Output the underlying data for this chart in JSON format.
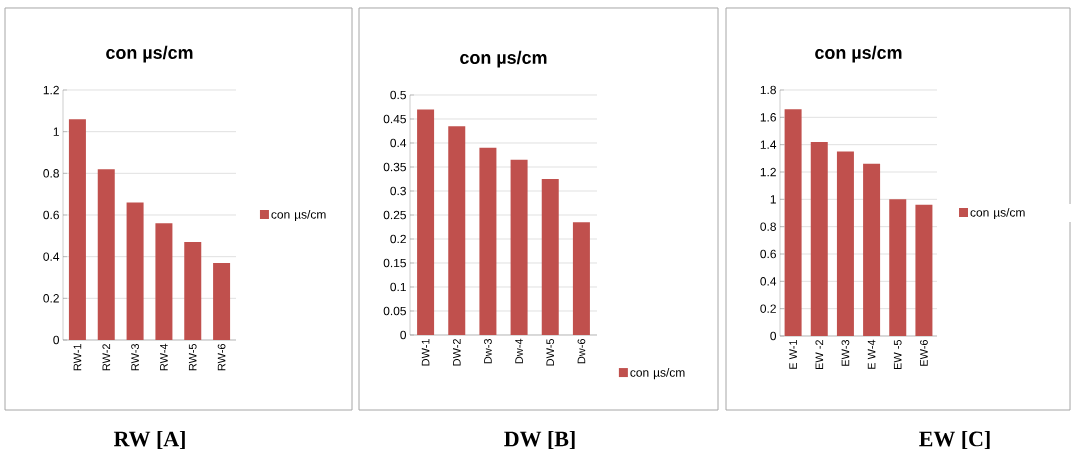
{
  "chart_data": [
    {
      "type": "bar",
      "title": "con µs/cm",
      "categories": [
        "RW-1",
        "RW-2",
        "RW-3",
        "RW-4",
        "RW-5",
        "RW-6"
      ],
      "series": [
        {
          "name": "con µs/cm",
          "color": "#c0504d",
          "values": [
            1.06,
            0.82,
            0.66,
            0.56,
            0.47,
            0.37
          ]
        }
      ],
      "ylim": [
        0,
        1.2
      ],
      "yticks": [
        0,
        0.2,
        0.4,
        0.6,
        0.8,
        1,
        1.2
      ],
      "grid": "y",
      "legend": "right",
      "annotations": [
        "RW  [A]"
      ]
    },
    {
      "type": "bar",
      "title": "con µs/cm",
      "categories": [
        "DW-1",
        "DW-2",
        "Dw-3",
        "Dw-4",
        "DW-5",
        "Dw-6"
      ],
      "series": [
        {
          "name": "con µs/cm",
          "color": "#c0504d",
          "values": [
            0.47,
            0.435,
            0.39,
            0.365,
            0.325,
            0.235
          ]
        }
      ],
      "ylim": [
        0,
        0.5
      ],
      "yticks": [
        0,
        0.05,
        0.1,
        0.15,
        0.2,
        0.25,
        0.3,
        0.35,
        0.4,
        0.45,
        0.5
      ],
      "grid": "y",
      "legend": "bottom right",
      "annotations": [
        "DW  [B]"
      ]
    },
    {
      "type": "bar",
      "title": "con µs/cm",
      "categories": [
        "E W-1",
        "EW -2",
        "EW-3",
        "E W-4",
        "EW -5",
        "EW-6"
      ],
      "series": [
        {
          "name": "con µs/cm",
          "color": "#c0504d",
          "values": [
            1.66,
            1.42,
            1.35,
            1.26,
            1.0,
            0.96
          ]
        }
      ],
      "ylim": [
        0,
        1.8
      ],
      "yticks": [
        0,
        0.2,
        0.4,
        0.6,
        0.8,
        1,
        1.2,
        1.4,
        1.6,
        1.8
      ],
      "grid": "y",
      "legend": "right",
      "annotations": [
        "EW  [C]"
      ]
    }
  ]
}
